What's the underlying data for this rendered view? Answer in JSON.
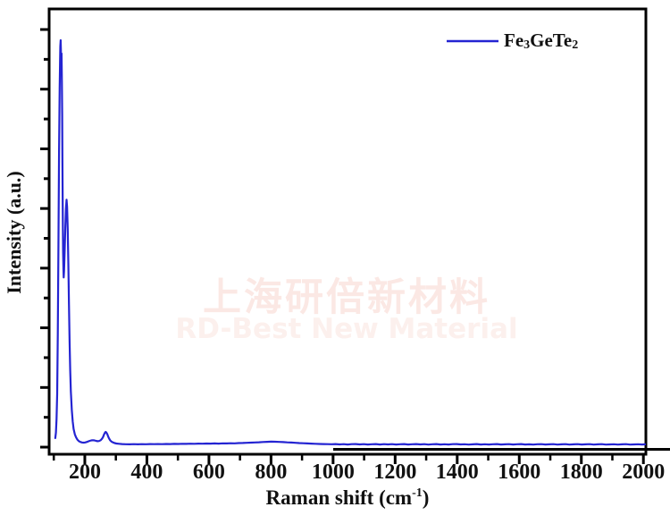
{
  "axes": {
    "y_label": "Intensity (a.u.)",
    "x_label_parts": {
      "main": "Raman shift (cm",
      "sup": "-1",
      "close": ")"
    },
    "x_tick_labels": [
      "200",
      "400",
      "600",
      "800",
      "1000",
      "1200",
      "1400",
      "1600",
      "1800",
      "2000"
    ]
  },
  "legend": {
    "parts": [
      "Fe",
      "3",
      "GeTe",
      "2"
    ],
    "line_color": "#2424d2"
  },
  "watermark": {
    "line1": "上海研倍新材料",
    "line2": "RD-Best New Material",
    "color_cn": "#fbe8e4",
    "color_en": "#fcf0ed"
  },
  "chart_data": {
    "type": "line",
    "title": "",
    "xlabel": "Raman shift (cm-1)",
    "ylabel": "Intensity (a.u.)",
    "xlim": [
      85,
      2008
    ],
    "ylim": [
      0,
      1.076
    ],
    "grid": false,
    "legend_position": "top-right",
    "x_ticks_major": [
      200,
      400,
      600,
      800,
      1000,
      1200,
      1400,
      1600,
      1800,
      2000
    ],
    "x_ticks_minor": [
      100,
      300,
      500,
      700,
      900,
      1100,
      1300,
      1500,
      1700,
      1900
    ],
    "y_axis_unlabeled": true,
    "series": [
      {
        "name": "Fe3GeTe2",
        "color": "#2424d2",
        "peaks_cm": [
          122,
          141,
          267
        ],
        "points": [
          [
            105,
            0.039
          ],
          [
            107,
            0.052
          ],
          [
            109,
            0.085
          ],
          [
            111,
            0.145
          ],
          [
            113,
            0.29
          ],
          [
            115,
            0.5
          ],
          [
            117,
            0.73
          ],
          [
            119,
            0.885
          ],
          [
            120,
            0.945
          ],
          [
            121,
            0.985
          ],
          [
            122,
            1.0
          ],
          [
            123,
            0.975
          ],
          [
            124,
            0.94
          ],
          [
            125,
            0.968
          ],
          [
            126,
            0.915
          ],
          [
            127,
            0.82
          ],
          [
            128,
            0.7
          ],
          [
            129,
            0.575
          ],
          [
            130,
            0.49
          ],
          [
            131,
            0.447
          ],
          [
            132,
            0.427
          ],
          [
            133,
            0.442
          ],
          [
            135,
            0.492
          ],
          [
            137,
            0.547
          ],
          [
            139,
            0.592
          ],
          [
            141,
            0.615
          ],
          [
            143,
            0.598
          ],
          [
            145,
            0.545
          ],
          [
            147,
            0.462
          ],
          [
            149,
            0.362
          ],
          [
            151,
            0.272
          ],
          [
            153,
            0.202
          ],
          [
            155,
            0.152
          ],
          [
            158,
            0.106
          ],
          [
            161,
            0.079
          ],
          [
            164,
            0.061
          ],
          [
            168,
            0.048
          ],
          [
            172,
            0.0405
          ],
          [
            176,
            0.0355
          ],
          [
            181,
            0.0315
          ],
          [
            186,
            0.0295
          ],
          [
            191,
            0.0285
          ],
          [
            196,
            0.028
          ],
          [
            201,
            0.0285
          ],
          [
            206,
            0.0295
          ],
          [
            211,
            0.031
          ],
          [
            216,
            0.0325
          ],
          [
            221,
            0.0335
          ],
          [
            226,
            0.034
          ],
          [
            231,
            0.0335
          ],
          [
            236,
            0.0325
          ],
          [
            241,
            0.0315
          ],
          [
            246,
            0.032
          ],
          [
            251,
            0.034
          ],
          [
            256,
            0.038
          ],
          [
            259,
            0.042
          ],
          [
            262,
            0.048
          ],
          [
            265,
            0.052
          ],
          [
            267,
            0.054
          ],
          [
            269,
            0.053
          ],
          [
            272,
            0.049
          ],
          [
            275,
            0.0435
          ],
          [
            278,
            0.0385
          ],
          [
            282,
            0.0335
          ],
          [
            286,
            0.0305
          ],
          [
            291,
            0.0285
          ],
          [
            296,
            0.027
          ],
          [
            302,
            0.026
          ],
          [
            310,
            0.0252
          ],
          [
            320,
            0.0246
          ],
          [
            332,
            0.0242
          ],
          [
            345,
            0.024
          ],
          [
            358,
            0.0243
          ],
          [
            371,
            0.0239
          ],
          [
            384,
            0.0244
          ],
          [
            397,
            0.0241
          ],
          [
            410,
            0.0246
          ],
          [
            423,
            0.0243
          ],
          [
            436,
            0.0247
          ],
          [
            449,
            0.0244
          ],
          [
            462,
            0.0249
          ],
          [
            475,
            0.0246
          ],
          [
            488,
            0.0251
          ],
          [
            501,
            0.0248
          ],
          [
            514,
            0.0253
          ],
          [
            527,
            0.025
          ],
          [
            540,
            0.0255
          ],
          [
            553,
            0.0252
          ],
          [
            566,
            0.0257
          ],
          [
            579,
            0.0254
          ],
          [
            592,
            0.0259
          ],
          [
            605,
            0.0256
          ],
          [
            618,
            0.0261
          ],
          [
            631,
            0.0258
          ],
          [
            644,
            0.0263
          ],
          [
            657,
            0.0261
          ],
          [
            670,
            0.0266
          ],
          [
            683,
            0.0264
          ],
          [
            696,
            0.0269
          ],
          [
            709,
            0.0272
          ],
          [
            722,
            0.0276
          ],
          [
            735,
            0.028
          ],
          [
            748,
            0.0285
          ],
          [
            761,
            0.029
          ],
          [
            774,
            0.0295
          ],
          [
            787,
            0.03
          ],
          [
            800,
            0.0304
          ],
          [
            813,
            0.0302
          ],
          [
            826,
            0.0298
          ],
          [
            839,
            0.0293
          ],
          [
            852,
            0.0288
          ],
          [
            865,
            0.0283
          ],
          [
            878,
            0.0277
          ],
          [
            891,
            0.0271
          ],
          [
            904,
            0.0266
          ],
          [
            917,
            0.0261
          ],
          [
            930,
            0.0256
          ],
          [
            943,
            0.0252
          ],
          [
            956,
            0.0249
          ],
          [
            969,
            0.0246
          ],
          [
            982,
            0.0244
          ],
          [
            995,
            0.0242
          ],
          [
            1008,
            0.0246
          ],
          [
            1021,
            0.0238
          ],
          [
            1034,
            0.0244
          ],
          [
            1047,
            0.0236
          ],
          [
            1060,
            0.0243
          ],
          [
            1073,
            0.0247
          ],
          [
            1086,
            0.0237
          ],
          [
            1099,
            0.0244
          ],
          [
            1112,
            0.0235
          ],
          [
            1125,
            0.0242
          ],
          [
            1138,
            0.0247
          ],
          [
            1151,
            0.0236
          ],
          [
            1164,
            0.0243
          ],
          [
            1177,
            0.0238
          ],
          [
            1190,
            0.0245
          ],
          [
            1203,
            0.0235
          ],
          [
            1216,
            0.0242
          ],
          [
            1229,
            0.0246
          ],
          [
            1242,
            0.0236
          ],
          [
            1255,
            0.0241
          ],
          [
            1268,
            0.0247
          ],
          [
            1281,
            0.0237
          ],
          [
            1294,
            0.0243
          ],
          [
            1307,
            0.0234
          ],
          [
            1320,
            0.0241
          ],
          [
            1333,
            0.0246
          ],
          [
            1346,
            0.0236
          ],
          [
            1359,
            0.0242
          ],
          [
            1372,
            0.0235
          ],
          [
            1385,
            0.0243
          ],
          [
            1398,
            0.0247
          ],
          [
            1411,
            0.0237
          ],
          [
            1424,
            0.0242
          ],
          [
            1437,
            0.0234
          ],
          [
            1450,
            0.024
          ],
          [
            1463,
            0.0246
          ],
          [
            1476,
            0.0236
          ],
          [
            1489,
            0.0241
          ],
          [
            1502,
            0.0235
          ],
          [
            1515,
            0.0242
          ],
          [
            1528,
            0.0246
          ],
          [
            1541,
            0.0236
          ],
          [
            1554,
            0.024
          ],
          [
            1567,
            0.0245
          ],
          [
            1580,
            0.0235
          ],
          [
            1593,
            0.0241
          ],
          [
            1606,
            0.0246
          ],
          [
            1619,
            0.0236
          ],
          [
            1632,
            0.024
          ],
          [
            1645,
            0.0234
          ],
          [
            1658,
            0.0241
          ],
          [
            1671,
            0.0245
          ],
          [
            1684,
            0.0235
          ],
          [
            1697,
            0.024
          ],
          [
            1710,
            0.0244
          ],
          [
            1723,
            0.0234
          ],
          [
            1736,
            0.0239
          ],
          [
            1749,
            0.0244
          ],
          [
            1762,
            0.0234
          ],
          [
            1775,
            0.024
          ],
          [
            1788,
            0.0244
          ],
          [
            1801,
            0.0235
          ],
          [
            1814,
            0.0239
          ],
          [
            1827,
            0.0243
          ],
          [
            1840,
            0.0234
          ],
          [
            1853,
            0.0239
          ],
          [
            1866,
            0.0243
          ],
          [
            1879,
            0.0233
          ],
          [
            1892,
            0.0238
          ],
          [
            1905,
            0.0242
          ],
          [
            1918,
            0.0234
          ],
          [
            1931,
            0.0239
          ],
          [
            1944,
            0.0243
          ],
          [
            1957,
            0.0233
          ],
          [
            1970,
            0.0238
          ],
          [
            1983,
            0.0242
          ],
          [
            1996,
            0.0236
          ],
          [
            2005,
            0.0239
          ]
        ]
      }
    ]
  }
}
